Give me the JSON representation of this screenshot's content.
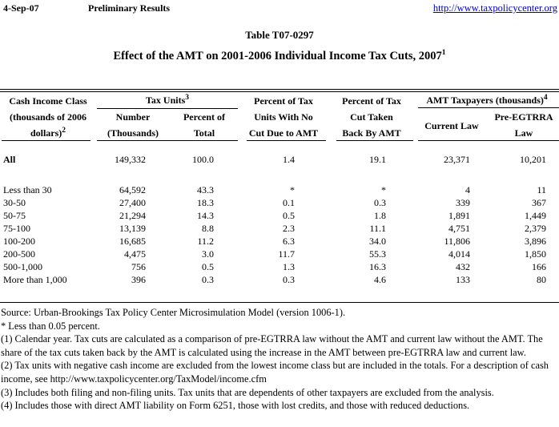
{
  "page": {
    "bg": "#ffffff",
    "text_color": "#000000",
    "link_color": "#0000cc"
  },
  "header": {
    "date": "4-Sep-07",
    "status": "Preliminary Results",
    "url": "http://www.taxpolicycenter.org"
  },
  "title": {
    "table_number": "Table T07-0297",
    "main": "Effect of the AMT on 2001-2006 Individual Income Tax Cuts, 2007",
    "main_sup": "1"
  },
  "table": {
    "headers": {
      "cash_line1": "Cash Income Class",
      "cash_line2": "(thousands of 2006",
      "cash_line3": "dollars)",
      "cash_sup": "2",
      "tax_units": "Tax Units",
      "tax_units_sup": "3",
      "number": "Number\n(Thousands)",
      "pct_total": "Percent of\nTotal",
      "pct_no_cut": "Percent of Tax\nUnits With No\nCut Due to AMT",
      "pct_taken_back": "Percent of Tax\nCut Taken\nBack By AMT",
      "amt_taxpayers": "AMT Taxpayers (thousands)",
      "amt_taxpayers_sup": "4",
      "current_law": "Current Law",
      "pre_egtrra": "Pre-EGTRRA\nLaw"
    },
    "rows": [
      {
        "label": "All",
        "bold": true,
        "values": [
          "149,332",
          "100.0",
          "1.4",
          "19.1",
          "23,371",
          "10,201"
        ]
      },
      {
        "label": "Less than 30",
        "bold": false,
        "values": [
          "64,592",
          "43.3",
          "*",
          "*",
          "4",
          "11"
        ]
      },
      {
        "label": "30-50",
        "bold": false,
        "values": [
          "27,400",
          "18.3",
          "0.1",
          "0.3",
          "339",
          "367"
        ]
      },
      {
        "label": "50-75",
        "bold": false,
        "values": [
          "21,294",
          "14.3",
          "0.5",
          "1.8",
          "1,891",
          "1,449"
        ]
      },
      {
        "label": "75-100",
        "bold": false,
        "values": [
          "13,139",
          "8.8",
          "2.3",
          "11.1",
          "4,751",
          "2,379"
        ]
      },
      {
        "label": "100-200",
        "bold": false,
        "values": [
          "16,685",
          "11.2",
          "6.3",
          "34.0",
          "11,806",
          "3,896"
        ]
      },
      {
        "label": "200-500",
        "bold": false,
        "values": [
          "4,475",
          "3.0",
          "11.7",
          "55.3",
          "4,014",
          "1,850"
        ]
      },
      {
        "label": "500-1,000",
        "bold": false,
        "values": [
          "756",
          "0.5",
          "1.3",
          "16.3",
          "432",
          "166"
        ]
      },
      {
        "label": "More than 1,000",
        "bold": false,
        "values": [
          "396",
          "0.3",
          "0.3",
          "4.6",
          "133",
          "80"
        ]
      }
    ]
  },
  "notes": [
    "Source: Urban-Brookings Tax Policy Center Microsimulation Model (version 1006-1).",
    "* Less than 0.05 percent.",
    "(1) Calendar year.  Tax cuts are calculated as a comparison of pre-EGTRRA law without the AMT and current law without the AMT. The share of the tax cuts taken back by the AMT is calculated using the increase in the AMT between pre-EGTRRA law and current law.",
    "(2) Tax units with negative cash income are excluded from the lowest income class but are included in the totals.  For a description of cash income, see http://www.taxpolicycenter.org/TaxModel/income.cfm",
    "(3) Includes both filing and non-filing units.  Tax units that are dependents of other taxpayers are excluded from the analysis.",
    "(4) Includes those with direct AMT liability on Form 6251, those with lost credits, and those with reduced deductions."
  ]
}
